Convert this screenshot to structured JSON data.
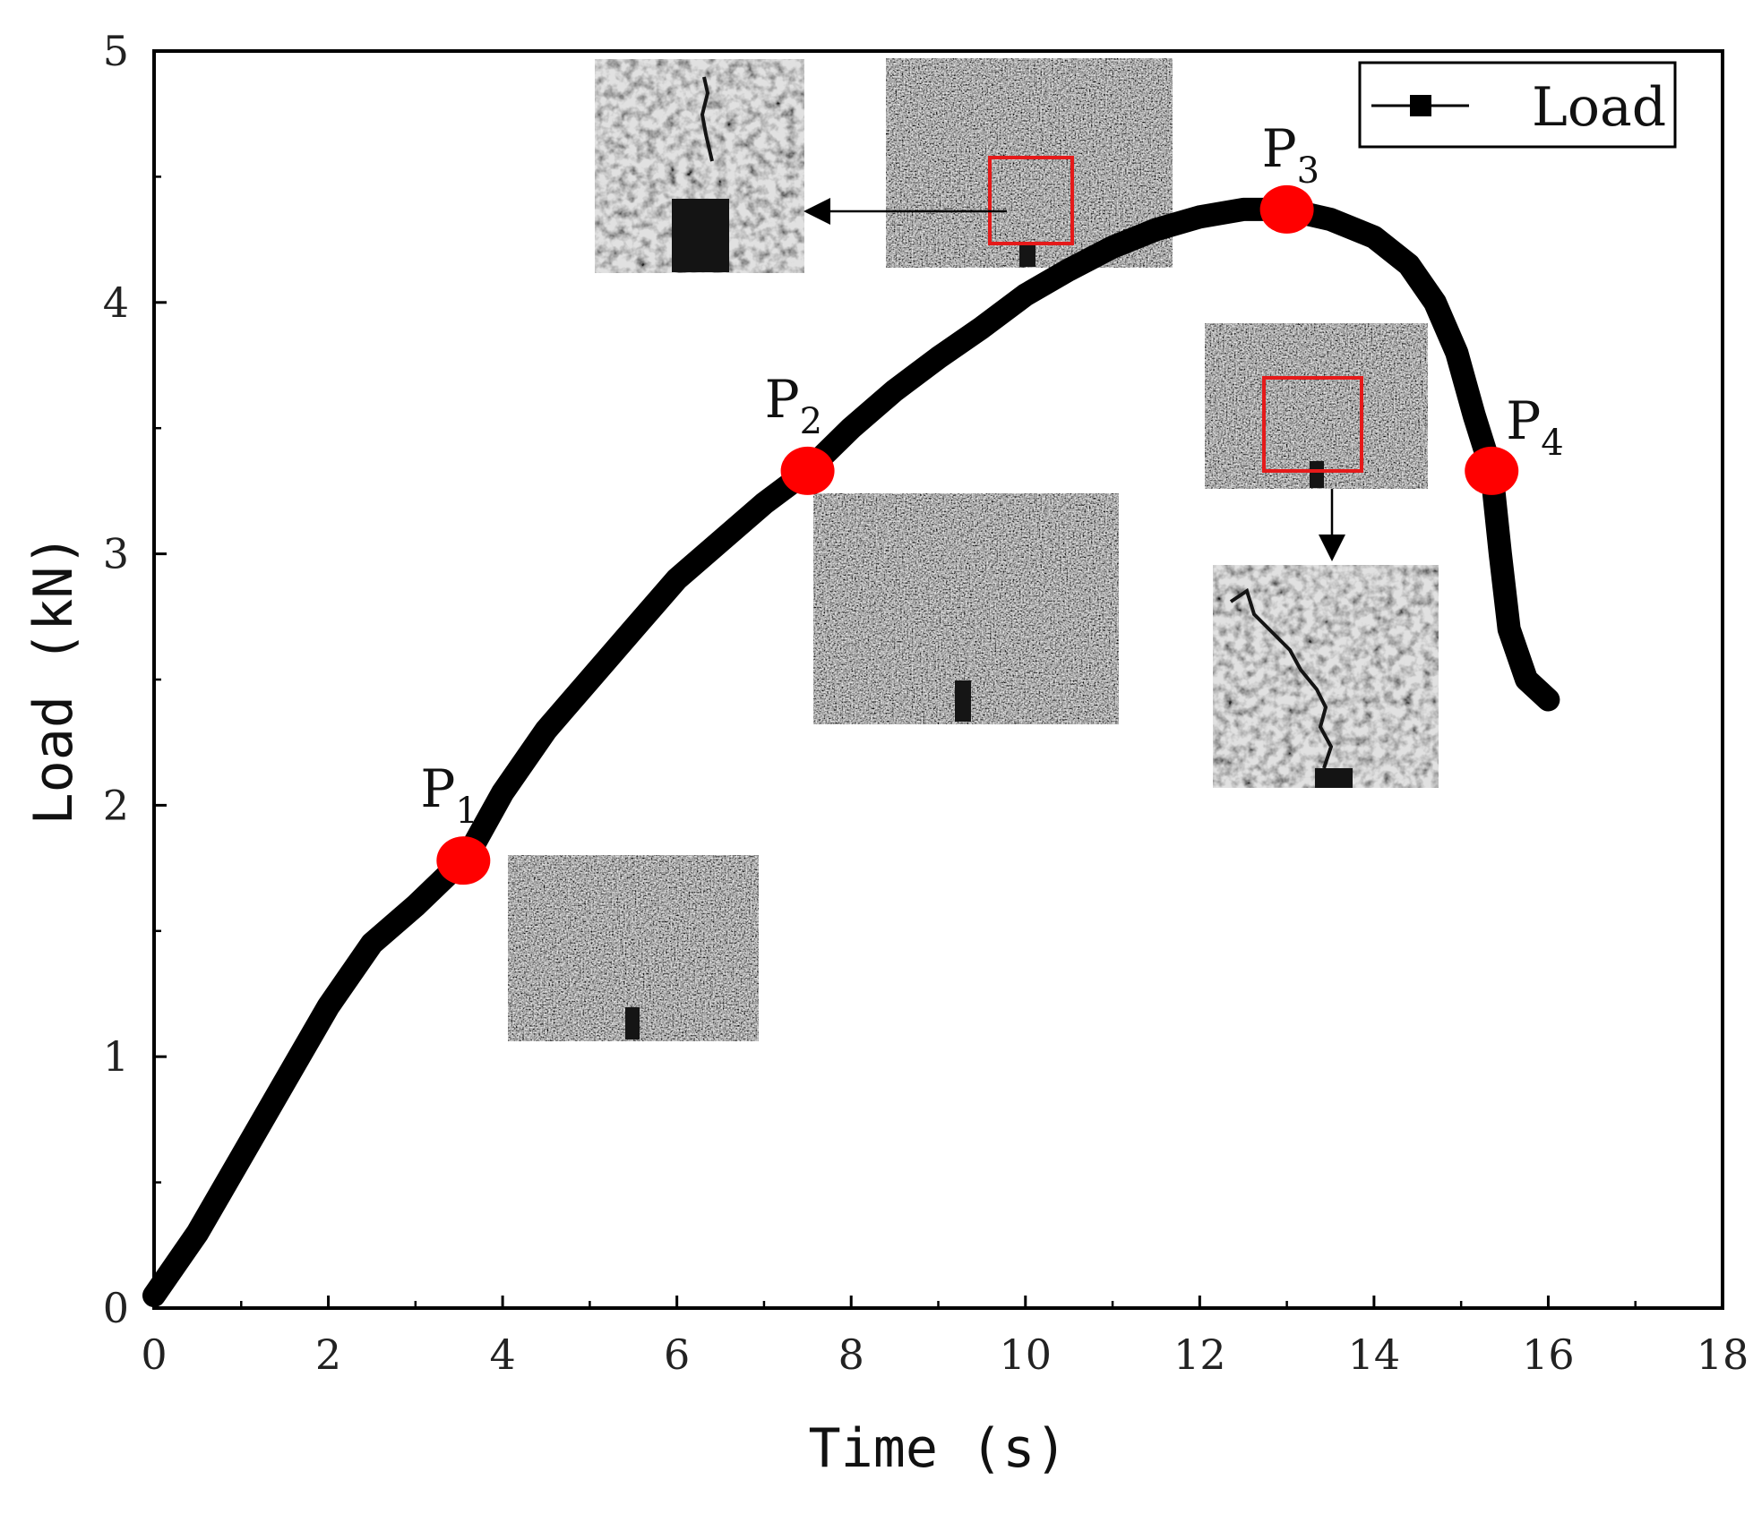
{
  "chart_data": {
    "type": "line",
    "title": "",
    "xlabel": "Time (s)",
    "ylabel": "Load (kN)",
    "xlim": [
      0,
      18
    ],
    "ylim": [
      0,
      5
    ],
    "x_ticks": [
      0,
      2,
      4,
      6,
      8,
      10,
      12,
      14,
      16,
      18
    ],
    "y_ticks": [
      0,
      1,
      2,
      3,
      4,
      5
    ],
    "grid": false,
    "legend_position": "top-right",
    "series": [
      {
        "name": "Load",
        "color": "#000000",
        "points": [
          [
            0.0,
            0.05
          ],
          [
            0.5,
            0.3
          ],
          [
            1.0,
            0.6
          ],
          [
            1.5,
            0.9
          ],
          [
            2.0,
            1.2
          ],
          [
            2.5,
            1.45
          ],
          [
            3.0,
            1.6
          ],
          [
            3.6,
            1.8
          ],
          [
            4.0,
            2.05
          ],
          [
            4.5,
            2.3
          ],
          [
            5.0,
            2.5
          ],
          [
            5.5,
            2.7
          ],
          [
            6.0,
            2.9
          ],
          [
            6.5,
            3.05
          ],
          [
            7.0,
            3.2
          ],
          [
            7.5,
            3.33
          ],
          [
            8.0,
            3.5
          ],
          [
            8.5,
            3.65
          ],
          [
            9.0,
            3.78
          ],
          [
            9.5,
            3.9
          ],
          [
            10.0,
            4.03
          ],
          [
            10.5,
            4.13
          ],
          [
            11.0,
            4.22
          ],
          [
            11.5,
            4.29
          ],
          [
            12.0,
            4.34
          ],
          [
            12.5,
            4.37
          ],
          [
            13.0,
            4.37
          ],
          [
            13.5,
            4.33
          ],
          [
            14.0,
            4.26
          ],
          [
            14.4,
            4.15
          ],
          [
            14.7,
            4.0
          ],
          [
            14.95,
            3.8
          ],
          [
            15.15,
            3.55
          ],
          [
            15.35,
            3.33
          ],
          [
            15.45,
            3.0
          ],
          [
            15.55,
            2.7
          ],
          [
            15.75,
            2.5
          ],
          [
            16.0,
            2.42
          ]
        ]
      }
    ],
    "annotations": [
      {
        "label": "P",
        "sub": "1",
        "x": 3.55,
        "y": 1.78,
        "color": "#ff0000"
      },
      {
        "label": "P",
        "sub": "2",
        "x": 7.5,
        "y": 3.33,
        "color": "#ff0000"
      },
      {
        "label": "P",
        "sub": "3",
        "x": 13.0,
        "y": 4.37,
        "color": "#ff0000"
      },
      {
        "label": "P",
        "sub": "4",
        "x": 15.35,
        "y": 3.33,
        "color": "#ff0000"
      }
    ],
    "insets": [
      {
        "name": "inset-p1-specimen"
      },
      {
        "name": "inset-p2-specimen"
      },
      {
        "name": "inset-p3-specimen"
      },
      {
        "name": "inset-p3-crack-zoom"
      },
      {
        "name": "inset-p4-specimen"
      },
      {
        "name": "inset-p4-crack-zoom"
      }
    ]
  },
  "legend": {
    "label": "Load"
  },
  "colors": {
    "curve": "#000000",
    "marker": "#ff0000",
    "highlight_box": "#e51a1a",
    "speckle_base": "#6e6e6e"
  }
}
